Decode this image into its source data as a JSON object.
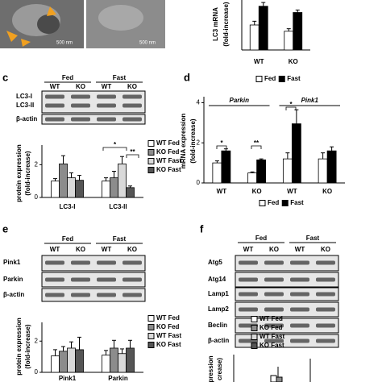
{
  "panel_labels": [
    "c",
    "d",
    "e",
    "f"
  ],
  "em_images": {
    "scale_bars": [
      "500 nm",
      "500 nm"
    ]
  },
  "blots": [
    {
      "conditions": [
        "Fed",
        "Fast"
      ],
      "genotypes": [
        "WT",
        "KO",
        "WT",
        "KO"
      ],
      "rows": [
        "LC3-I",
        "LC3-II",
        "β-actin"
      ]
    },
    {
      "conditions": [
        "Fed",
        "Fast"
      ],
      "genotypes": [
        "WT",
        "KO",
        "WT",
        "KO"
      ],
      "rows": [
        "Pink1",
        "Parkin",
        "β-actin"
      ]
    },
    {
      "conditions": [
        "Fed",
        "Fast"
      ],
      "genotypes": [
        "WT",
        "KO",
        "WT",
        "KO"
      ],
      "rows": [
        "Atg5",
        "Atg14",
        "Lamp1",
        "Lamp2",
        "Beclin",
        "β-actin"
      ]
    }
  ],
  "panel_f": {
    "ylabel": [
      "pression",
      "crease)"
    ],
    "legend": [
      "WT Fed",
      "KO Fed",
      "WT Fast",
      "KO Fast"
    ]
  },
  "chart_data": [
    {
      "type": "bar",
      "ylabel": [
        "LC3 mRNA",
        "(fold-increase)"
      ],
      "categories": [
        "WT",
        "KO"
      ],
      "ylim": [
        0,
        2
      ],
      "legend": "bottom",
      "series": [
        {
          "name": "Fed",
          "color": "#ffffff",
          "values": [
            1.0,
            0.75
          ],
          "errors": [
            0.15,
            0.1
          ]
        },
        {
          "name": "Fast",
          "color": "#000000",
          "values": [
            1.75,
            1.5
          ],
          "errors": [
            0.15,
            0.1
          ]
        }
      ]
    },
    {
      "type": "bar",
      "ylabel": [
        "protein expression",
        "(fold-increase)"
      ],
      "categories": [
        "LC3-I",
        "LC3-II"
      ],
      "ylim": [
        0,
        3.2
      ],
      "yticks": [
        0,
        2
      ],
      "legend": "right",
      "annotations": [
        "*",
        "**"
      ],
      "series": [
        {
          "name": "WT Fed",
          "color": "#ffffff",
          "values": [
            1.0,
            1.0
          ],
          "errors": [
            0.15,
            0.2
          ]
        },
        {
          "name": "KO Fed",
          "color": "#8c8c8c",
          "values": [
            2.05,
            1.2
          ],
          "errors": [
            0.5,
            0.4
          ]
        },
        {
          "name": "WT Fast",
          "color": "#d9d9d9",
          "values": [
            1.2,
            2.05
          ],
          "errors": [
            0.3,
            0.45
          ]
        },
        {
          "name": "KO Fast",
          "color": "#555555",
          "values": [
            1.05,
            0.6
          ],
          "errors": [
            0.3,
            0.1
          ]
        }
      ]
    },
    {
      "type": "bar",
      "ylabel": [
        "mRNA expression",
        "(fold-increase)"
      ],
      "categories": [
        "WT",
        "KO",
        "WT",
        "KO"
      ],
      "groups": [
        "Parkin",
        "Pink1"
      ],
      "ylim": [
        0,
        4.3
      ],
      "yticks": [
        0,
        2,
        4
      ],
      "legend": "bottom",
      "annotations": [
        "*",
        "**",
        "*"
      ],
      "series": [
        {
          "name": "Fed",
          "color": "#ffffff",
          "values": [
            1.0,
            0.5,
            1.2,
            1.2
          ],
          "errors": [
            0.1,
            0.05,
            0.3,
            0.3
          ]
        },
        {
          "name": "Fast",
          "color": "#000000",
          "values": [
            1.6,
            1.15,
            2.95,
            1.6
          ],
          "errors": [
            0.1,
            0.05,
            0.7,
            0.2
          ]
        }
      ]
    },
    {
      "type": "bar",
      "ylabel": [
        "protein expression",
        "(fold-increase)"
      ],
      "categories": [
        "Pink1",
        "Parkin"
      ],
      "ylim": [
        0,
        3.2
      ],
      "yticks": [
        0,
        2
      ],
      "legend": "right",
      "series": [
        {
          "name": "WT Fed",
          "color": "#ffffff",
          "values": [
            1.05,
            1.1
          ],
          "errors": [
            0.4,
            0.3
          ]
        },
        {
          "name": "KO Fed",
          "color": "#8c8c8c",
          "values": [
            1.35,
            1.55
          ],
          "errors": [
            0.3,
            0.5
          ]
        },
        {
          "name": "WT Fast",
          "color": "#d9d9d9",
          "values": [
            1.55,
            1.2
          ],
          "errors": [
            0.4,
            0.3
          ]
        },
        {
          "name": "KO Fast",
          "color": "#555555",
          "values": [
            1.45,
            1.55
          ],
          "errors": [
            0.8,
            0.5
          ]
        }
      ]
    }
  ]
}
